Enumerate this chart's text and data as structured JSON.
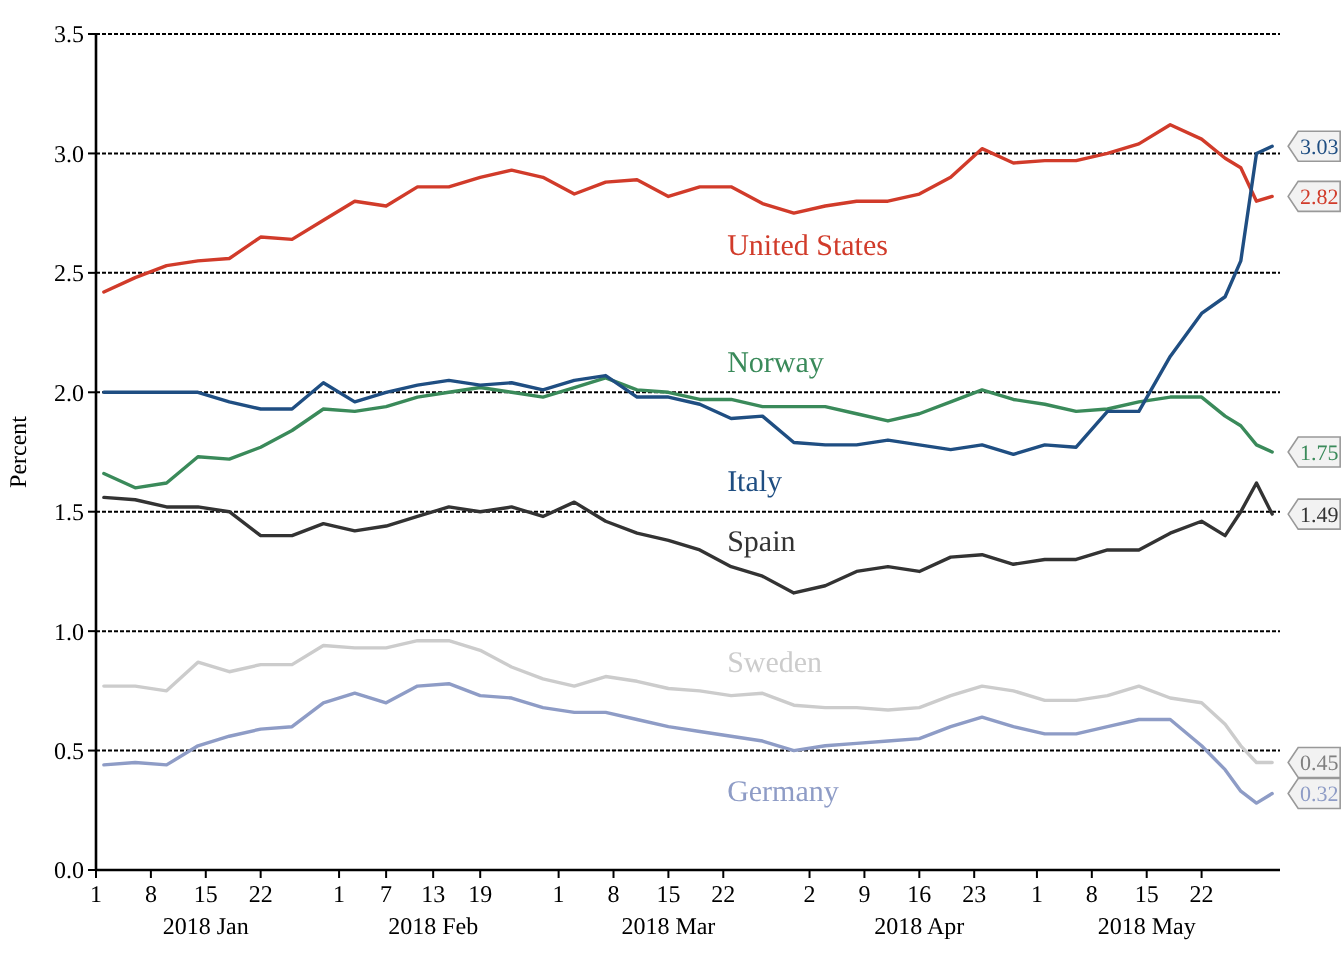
{
  "chart_data": {
    "type": "line",
    "ylabel": "Percent",
    "grid": "y",
    "marker": "none",
    "line_style": "solid",
    "x": [
      "2018-01-02",
      "2018-01-06",
      "2018-01-10",
      "2018-01-14",
      "2018-01-18",
      "2018-01-22",
      "2018-01-26",
      "2018-01-30",
      "2018-02-03",
      "2018-02-07",
      "2018-02-11",
      "2018-02-15",
      "2018-02-19",
      "2018-02-23",
      "2018-02-27",
      "2018-03-03",
      "2018-03-07",
      "2018-03-11",
      "2018-03-15",
      "2018-03-19",
      "2018-03-23",
      "2018-03-27",
      "2018-03-31",
      "2018-04-04",
      "2018-04-08",
      "2018-04-12",
      "2018-04-16",
      "2018-04-20",
      "2018-04-24",
      "2018-04-28",
      "2018-05-02",
      "2018-05-06",
      "2018-05-10",
      "2018-05-14",
      "2018-05-18",
      "2018-05-22",
      "2018-05-25",
      "2018-05-27",
      "2018-05-29",
      "2018-05-31"
    ],
    "xlim": [
      "2018-01-01",
      "2018-06-01"
    ],
    "xticks": [
      {
        "value": "2018-01-01",
        "label": "1"
      },
      {
        "value": "2018-01-08",
        "label": "8"
      },
      {
        "value": "2018-01-15",
        "label": "15\n2018 Jan"
      },
      {
        "value": "2018-01-22",
        "label": "22"
      },
      {
        "value": "2018-02-01",
        "label": "1"
      },
      {
        "value": "2018-02-07",
        "label": "7"
      },
      {
        "value": "2018-02-13",
        "label": "13\n2018 Feb"
      },
      {
        "value": "2018-02-19",
        "label": "19"
      },
      {
        "value": "2018-03-01",
        "label": "1"
      },
      {
        "value": "2018-03-08",
        "label": "8"
      },
      {
        "value": "2018-03-15",
        "label": "15\n2018 Mar"
      },
      {
        "value": "2018-03-22",
        "label": "22"
      },
      {
        "value": "2018-04-02",
        "label": "2"
      },
      {
        "value": "2018-04-09",
        "label": "9"
      },
      {
        "value": "2018-04-16",
        "label": "16\n2018 Apr"
      },
      {
        "value": "2018-04-23",
        "label": "23"
      },
      {
        "value": "2018-05-01",
        "label": "1"
      },
      {
        "value": "2018-05-08",
        "label": "8"
      },
      {
        "value": "2018-05-15",
        "label": "15\n2018 May"
      },
      {
        "value": "2018-05-22",
        "label": "22"
      }
    ],
    "ylim": [
      0,
      3.5
    ],
    "yticks": [
      {
        "value": 0,
        "label": "0.0"
      },
      {
        "value": 0.5,
        "label": "0.5"
      },
      {
        "value": 1,
        "label": "1.0"
      },
      {
        "value": 1.5,
        "label": "1.5"
      },
      {
        "value": 2,
        "label": "2.0"
      },
      {
        "value": 2.5,
        "label": "2.5"
      },
      {
        "value": 3,
        "label": "3.0"
      },
      {
        "value": 3.5,
        "label": "3.5"
      }
    ],
    "series": [
      {
        "name": "United States",
        "color": "#d13b2a",
        "values": [
          2.42,
          2.48,
          2.53,
          2.55,
          2.56,
          2.65,
          2.64,
          2.72,
          2.8,
          2.78,
          2.86,
          2.86,
          2.9,
          2.93,
          2.9,
          2.83,
          2.88,
          2.89,
          2.82,
          2.86,
          2.86,
          2.79,
          2.75,
          2.78,
          2.8,
          2.8,
          2.83,
          2.9,
          3.02,
          2.96,
          2.97,
          2.97,
          3.0,
          3.04,
          3.12,
          3.06,
          2.98,
          2.94,
          2.8,
          2.82
        ],
        "value_labels": [
          null,
          null,
          null,
          null,
          null,
          null,
          null,
          null,
          null,
          null,
          null,
          null,
          null,
          null,
          null,
          null,
          null,
          null,
          null,
          null,
          null,
          null,
          null,
          null,
          null,
          null,
          null,
          null,
          null,
          null,
          null,
          null,
          null,
          null,
          null,
          null,
          null,
          null,
          null,
          "2.82"
        ]
      },
      {
        "name": "Norway",
        "color": "#3a8a5a",
        "values": [
          1.66,
          1.6,
          1.62,
          1.73,
          1.72,
          1.77,
          1.84,
          1.93,
          1.92,
          1.94,
          1.98,
          2.0,
          2.02,
          2.0,
          1.98,
          2.02,
          2.06,
          2.01,
          2.0,
          1.97,
          1.97,
          1.94,
          1.94,
          1.94,
          1.91,
          1.88,
          1.91,
          1.96,
          2.01,
          1.97,
          1.95,
          1.92,
          1.93,
          1.96,
          1.98,
          1.98,
          1.9,
          1.86,
          1.78,
          1.75
        ],
        "value_labels": [
          null,
          null,
          null,
          null,
          null,
          null,
          null,
          null,
          null,
          null,
          null,
          null,
          null,
          null,
          null,
          null,
          null,
          null,
          null,
          null,
          null,
          null,
          null,
          null,
          null,
          null,
          null,
          null,
          null,
          null,
          null,
          null,
          null,
          null,
          null,
          null,
          null,
          null,
          null,
          "1.75"
        ]
      },
      {
        "name": "Italy",
        "color": "#1f4e82",
        "values": [
          2.0,
          2.0,
          2.0,
          2.0,
          1.96,
          1.93,
          1.93,
          2.04,
          1.96,
          2.0,
          2.03,
          2.05,
          2.03,
          2.04,
          2.01,
          2.05,
          2.07,
          1.98,
          1.98,
          1.95,
          1.89,
          1.9,
          1.79,
          1.78,
          1.78,
          1.8,
          1.78,
          1.76,
          1.78,
          1.74,
          1.78,
          1.77,
          1.92,
          1.92,
          2.15,
          2.33,
          2.4,
          2.55,
          3.0,
          3.03
        ],
        "value_labels": [
          null,
          null,
          null,
          null,
          null,
          null,
          null,
          null,
          null,
          null,
          null,
          null,
          null,
          null,
          null,
          null,
          null,
          null,
          null,
          null,
          null,
          null,
          null,
          null,
          null,
          null,
          null,
          null,
          null,
          null,
          null,
          null,
          null,
          null,
          null,
          null,
          null,
          null,
          null,
          "3.03"
        ]
      },
      {
        "name": "Spain",
        "color": "#333333",
        "values": [
          1.56,
          1.55,
          1.52,
          1.52,
          1.5,
          1.4,
          1.4,
          1.45,
          1.42,
          1.44,
          1.48,
          1.52,
          1.5,
          1.52,
          1.48,
          1.54,
          1.46,
          1.41,
          1.38,
          1.34,
          1.27,
          1.23,
          1.16,
          1.19,
          1.25,
          1.27,
          1.25,
          1.31,
          1.32,
          1.28,
          1.3,
          1.3,
          1.34,
          1.34,
          1.41,
          1.46,
          1.4,
          1.5,
          1.62,
          1.49
        ],
        "value_labels": [
          null,
          null,
          null,
          null,
          null,
          null,
          null,
          null,
          null,
          null,
          null,
          null,
          null,
          null,
          null,
          null,
          null,
          null,
          null,
          null,
          null,
          null,
          null,
          null,
          null,
          null,
          null,
          null,
          null,
          null,
          null,
          null,
          null,
          null,
          null,
          null,
          null,
          null,
          null,
          "1.49"
        ]
      },
      {
        "name": "Sweden",
        "color": "#cccccc",
        "values": [
          0.77,
          0.77,
          0.75,
          0.87,
          0.83,
          0.86,
          0.86,
          0.94,
          0.93,
          0.93,
          0.96,
          0.96,
          0.92,
          0.85,
          0.8,
          0.77,
          0.81,
          0.79,
          0.76,
          0.75,
          0.73,
          0.74,
          0.69,
          0.68,
          0.68,
          0.67,
          0.68,
          0.73,
          0.77,
          0.75,
          0.71,
          0.71,
          0.73,
          0.77,
          0.72,
          0.7,
          0.61,
          0.52,
          0.45,
          0.45
        ],
        "value_labels": [
          null,
          null,
          null,
          null,
          null,
          null,
          null,
          null,
          null,
          null,
          null,
          null,
          null,
          null,
          null,
          null,
          null,
          null,
          null,
          null,
          null,
          null,
          null,
          null,
          null,
          null,
          null,
          null,
          null,
          null,
          null,
          null,
          null,
          null,
          null,
          null,
          null,
          null,
          null,
          "0.45"
        ]
      },
      {
        "name": "Germany",
        "color": "#8e9cc6",
        "values": [
          0.44,
          0.45,
          0.44,
          0.52,
          0.56,
          0.59,
          0.6,
          0.7,
          0.74,
          0.7,
          0.77,
          0.78,
          0.73,
          0.72,
          0.68,
          0.66,
          0.66,
          0.63,
          0.6,
          0.58,
          0.56,
          0.54,
          0.5,
          0.52,
          0.53,
          0.54,
          0.55,
          0.6,
          0.64,
          0.6,
          0.57,
          0.57,
          0.6,
          0.63,
          0.63,
          0.52,
          0.42,
          0.33,
          0.28,
          0.32
        ],
        "value_labels": [
          null,
          null,
          null,
          null,
          null,
          null,
          null,
          null,
          null,
          null,
          null,
          null,
          null,
          null,
          null,
          null,
          null,
          null,
          null,
          null,
          null,
          null,
          null,
          null,
          null,
          null,
          null,
          null,
          null,
          null,
          null,
          null,
          null,
          null,
          null,
          null,
          null,
          null,
          null,
          "0.32"
        ]
      }
    ]
  }
}
